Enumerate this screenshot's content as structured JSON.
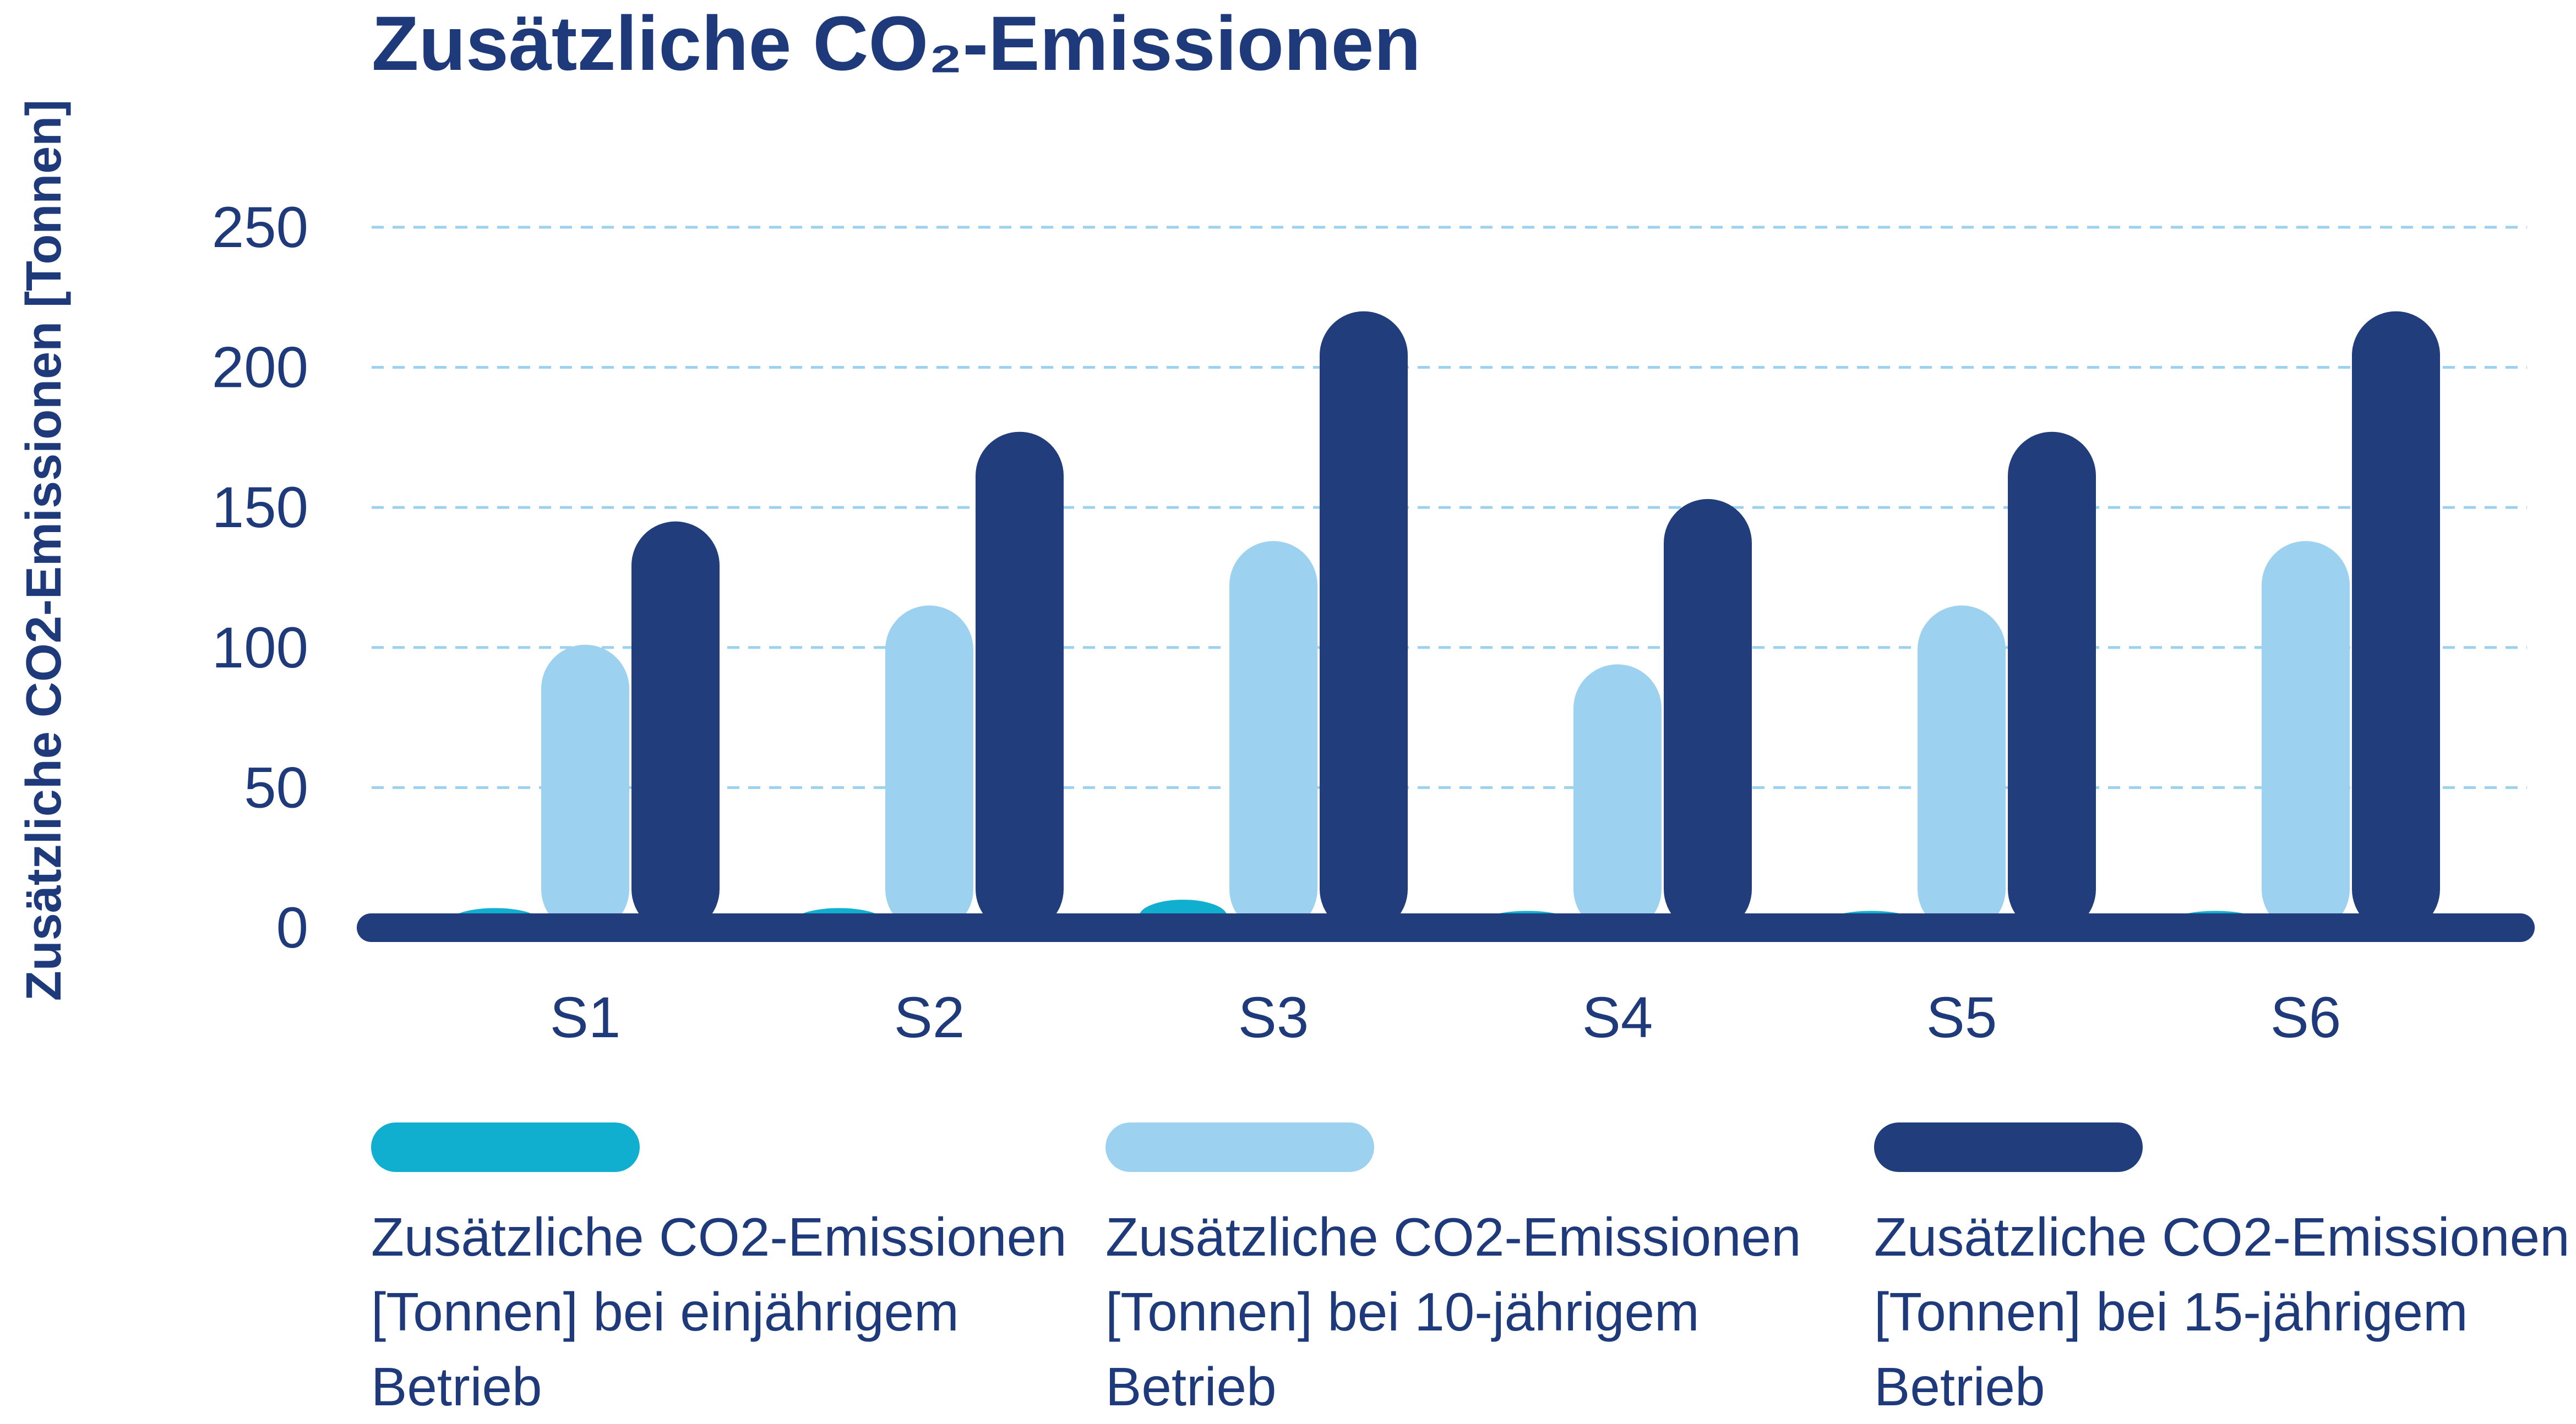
{
  "chart_data": {
    "type": "bar",
    "title": "Zusätzliche CO₂-Emissionen",
    "ylabel": "Zusätzliche CO2-Emissionen [Tonnen]",
    "xlabel": "",
    "ylim": [
      0,
      250
    ],
    "yticks": [
      0,
      50,
      100,
      150,
      200,
      250
    ],
    "grid": true,
    "categories": [
      "S1",
      "S2",
      "S3",
      "S4",
      "S5",
      "S6"
    ],
    "series": [
      {
        "name": "Zusätzliche CO2-Emissionen [Tonnen] bei einjährigem Betrieb",
        "color": "#10aecf",
        "values": [
          7,
          7,
          10,
          6,
          6,
          6
        ]
      },
      {
        "name": "Zusätzliche CO2-Emissionen [Tonnen] bei 10-jährigem Betrieb",
        "color": "#9dd1f0",
        "values": [
          101,
          115,
          138,
          94,
          115,
          138
        ]
      },
      {
        "name": "Zusätzliche CO2-Emissionen [Tonnen] bei 15-jährigem Betrieb",
        "color": "#213d7b",
        "values": [
          145,
          177,
          220,
          153,
          177,
          220
        ]
      }
    ],
    "legend_position": "bottom"
  },
  "colors": {
    "text": "#1f3a7a",
    "axis": "#213d7b",
    "grid": "#9dd1f0"
  }
}
